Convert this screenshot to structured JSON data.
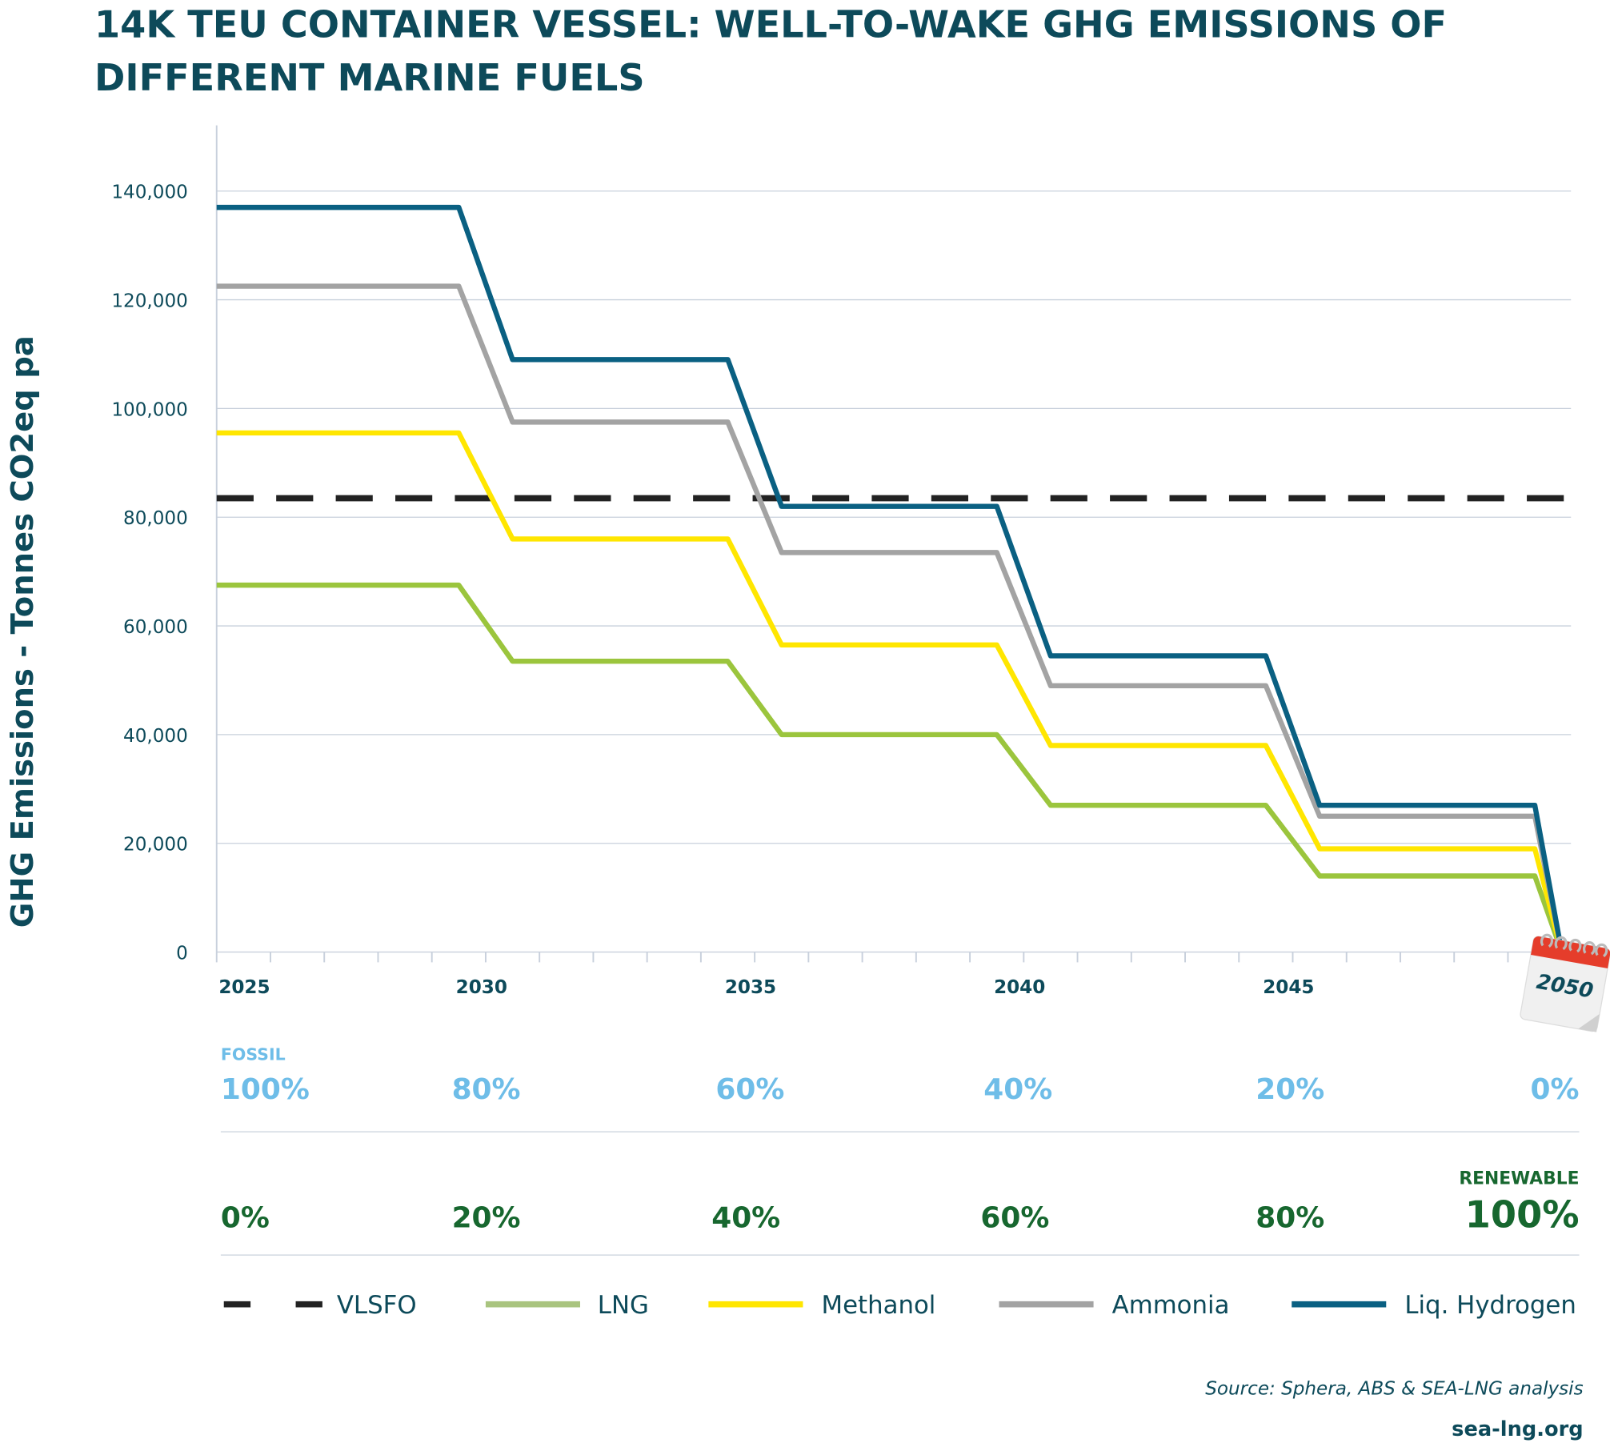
{
  "title_line1": "14K TEU CONTAINER VESSEL: WELL-TO-WAKE GHG EMISSIONS OF",
  "title_line2": "DIFFERENT MARINE FUELS",
  "chart_data": {
    "type": "line",
    "title": "14K TEU CONTAINER VESSEL: WELL-TO-WAKE GHG EMISSIONS OF DIFFERENT MARINE FUELS",
    "ylabel": "GHG Emissions - Tonnes CO2eq pa",
    "xlabel": "",
    "ylim": [
      0,
      150000
    ],
    "xlim": [
      2025,
      2050
    ],
    "yticks": [
      "0",
      "20,000",
      "40,000",
      "60,000",
      "80,000",
      "100,000",
      "120,000",
      "140,000"
    ],
    "xticks": [
      "2025",
      "2030",
      "2035",
      "2040",
      "2045",
      "2050"
    ],
    "grid": "horizontal",
    "legend": "bottom",
    "step_years": [
      2025,
      2030,
      2035,
      2040,
      2045,
      2050
    ],
    "series": [
      {
        "name": "VLSFO",
        "color": "#222222",
        "style": "dashed",
        "values": [
          83500,
          83500,
          83500,
          83500,
          83500,
          83500
        ]
      },
      {
        "name": "LNG",
        "color": "#9bc53d",
        "legend_color": "#a9c47f",
        "values": [
          67500,
          53500,
          40000,
          27000,
          14000,
          0
        ]
      },
      {
        "name": "Methanol",
        "color": "#ffe600",
        "values": [
          95500,
          76000,
          56500,
          38000,
          19000,
          0
        ]
      },
      {
        "name": "Ammonia",
        "color": "#a3a3a3",
        "values": [
          122500,
          97500,
          73500,
          49000,
          25000,
          0
        ]
      },
      {
        "name": "Liq. Hydrogen",
        "color": "#0a6082",
        "values": [
          137000,
          109000,
          82000,
          54500,
          27000,
          0
        ]
      }
    ]
  },
  "fuel_mix": {
    "fossil_label": "FOSSIL",
    "fossil": [
      "100%",
      "80%",
      "60%",
      "40%",
      "20%",
      "0%"
    ],
    "renewable_label": "RENEWABLE",
    "renewable": [
      "0%",
      "20%",
      "40%",
      "60%",
      "80%",
      "100%"
    ],
    "fossil_color": "#6ebde8",
    "renewable_color": "#17672f"
  },
  "calendar_icon": {
    "icon": "calendar-icon",
    "text": "2050"
  },
  "source": "Source: Sphera, ABS & SEA-LNG analysis",
  "website": "sea-lng.org"
}
